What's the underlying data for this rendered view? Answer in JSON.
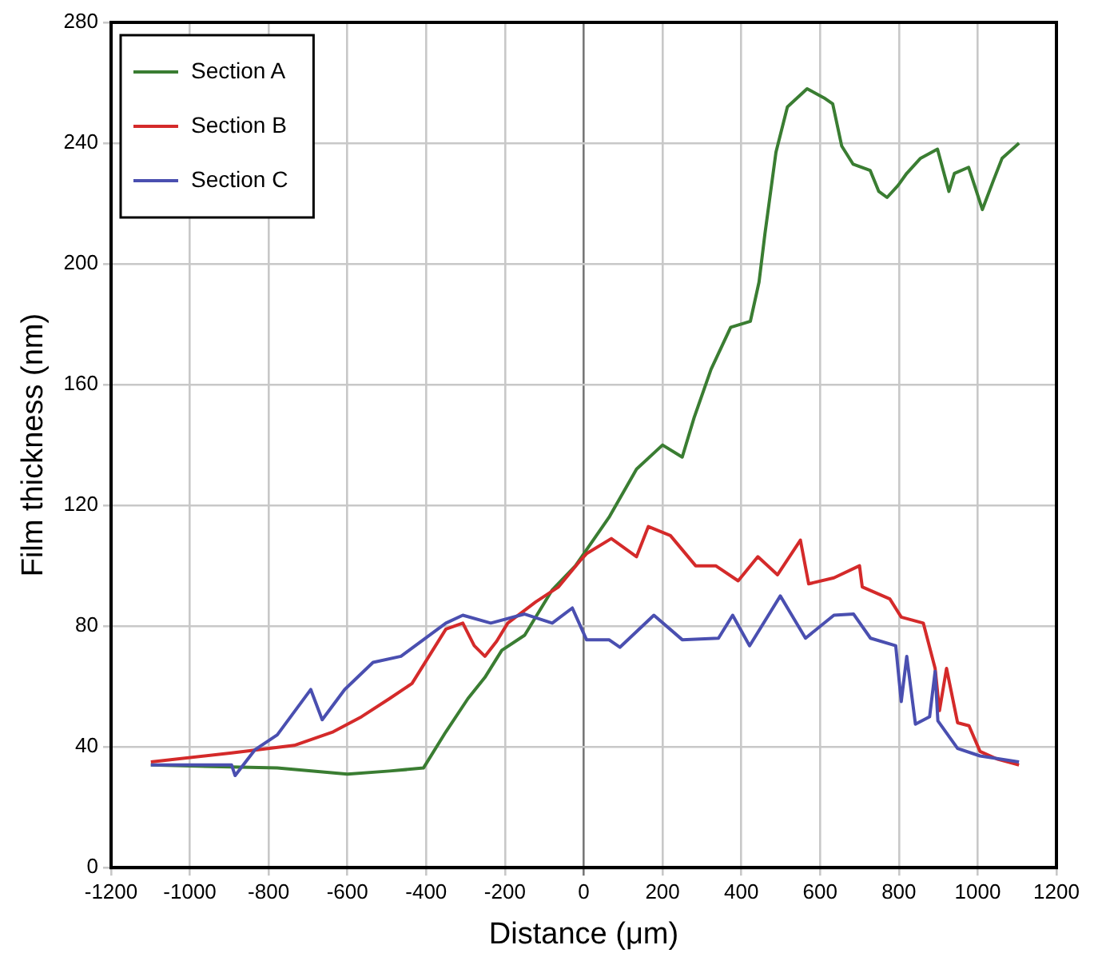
{
  "chart_data": {
    "type": "line",
    "xlabel": "Distance (μm)",
    "ylabel": "Film thickness (nm)",
    "xlim": [
      -1200,
      1200
    ],
    "xticks": [
      -1200,
      -1000,
      -800,
      -600,
      -400,
      -200,
      0,
      200,
      400,
      600,
      800,
      1000,
      1200
    ],
    "ylim": [
      0,
      280
    ],
    "yticks": [
      0,
      40,
      80,
      120,
      160,
      200,
      240,
      280
    ],
    "grid": true,
    "legend": "top left",
    "marker": "none",
    "line_style": "solid",
    "series": [
      {
        "name": "Section A",
        "color": "#3a7d32",
        "x": [
          -1099,
          -778,
          -600,
          -493,
          -407,
          -350,
          -294,
          -251,
          -208,
          -150,
          -80,
          -21,
          64,
          134,
          200,
          250,
          280,
          323,
          373,
          423,
          445,
          460,
          488,
          517,
          567,
          610,
          632,
          655,
          684,
          727,
          749,
          770,
          798,
          820,
          855,
          898,
          927,
          941,
          977,
          1012,
          1041,
          1062,
          1105
        ],
        "values": [
          34,
          33,
          31,
          32,
          33,
          45,
          56,
          63,
          72,
          77,
          92,
          100,
          116,
          132,
          140,
          136,
          149,
          165,
          179,
          181,
          194,
          210,
          237,
          252,
          258,
          255,
          253,
          239,
          233,
          231,
          224,
          222,
          226,
          230,
          235,
          238,
          224,
          230,
          232,
          218,
          228,
          235,
          240
        ]
      },
      {
        "name": "Section B",
        "color": "#d42a2a",
        "x": [
          -1099,
          -894,
          -735,
          -636,
          -564,
          -493,
          -436,
          -393,
          -350,
          -307,
          -278,
          -251,
          -221,
          -193,
          -122,
          -64,
          -7,
          7,
          70,
          134,
          164,
          220,
          284,
          335,
          392,
          442,
          492,
          550,
          571,
          635,
          700,
          707,
          777,
          806,
          862,
          892,
          903,
          921,
          949,
          978,
          1006,
          1049,
          1105
        ],
        "values": [
          35,
          38,
          40.5,
          45,
          50,
          56,
          61,
          70,
          79,
          81,
          73.5,
          70,
          75,
          81,
          88,
          93,
          102,
          104,
          109,
          103,
          113,
          110,
          100,
          100,
          95,
          103,
          97,
          108.5,
          94,
          96,
          100,
          93,
          89,
          83,
          81,
          66,
          52,
          66,
          48,
          47,
          38.5,
          36,
          34
        ]
      },
      {
        "name": "Section C",
        "color": "#4a4fb0",
        "x": [
          -1099,
          -894,
          -885,
          -835,
          -778,
          -693,
          -664,
          -607,
          -535,
          -464,
          -407,
          -350,
          -307,
          -236,
          -150,
          -80,
          -29,
          7,
          21,
          64,
          92,
          178,
          250,
          342,
          378,
          421,
          499,
          563,
          635,
          685,
          728,
          792,
          806,
          820,
          842,
          878,
          892,
          899,
          949,
          1006,
          1105
        ],
        "values": [
          34,
          34,
          30.5,
          39,
          44,
          59,
          49,
          59,
          68,
          70,
          75.5,
          81,
          83.6,
          81,
          84,
          81,
          86,
          75.5,
          75.5,
          75.5,
          73,
          83.6,
          75.5,
          76,
          83.6,
          73.5,
          90,
          76,
          83.6,
          84,
          76,
          73.5,
          55,
          70,
          47.5,
          50,
          65,
          48.6,
          39.5,
          37,
          35
        ]
      }
    ]
  }
}
